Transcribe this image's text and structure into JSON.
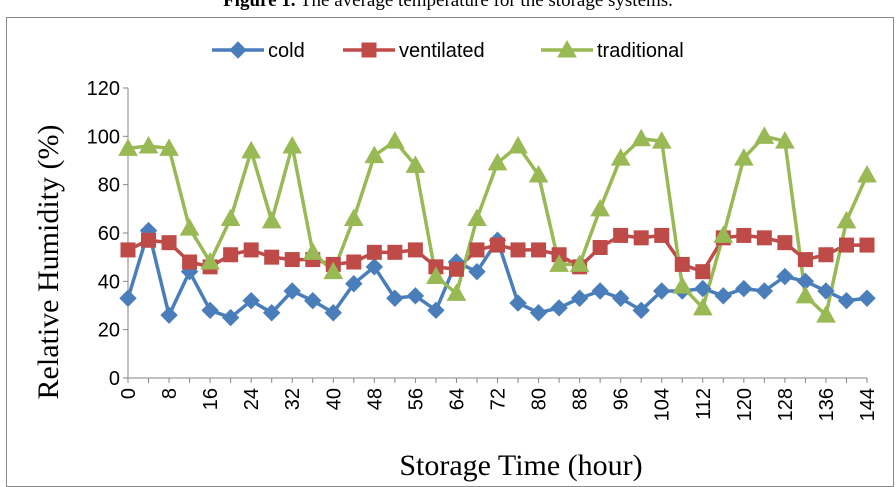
{
  "caption": {
    "label": "Figure 1.",
    "text": " The average temperature for the storage systems."
  },
  "chart_data": {
    "type": "line",
    "xlabel": "Storage Time (hour)",
    "ylabel": "Relative Humidity (%)",
    "ylim": [
      0,
      120
    ],
    "yticks": [
      0,
      20,
      40,
      60,
      80,
      100,
      120
    ],
    "xlim": [
      0,
      144
    ],
    "xticks": [
      0,
      8,
      16,
      24,
      32,
      40,
      48,
      56,
      64,
      72,
      80,
      88,
      96,
      104,
      112,
      120,
      128,
      136,
      144
    ],
    "legend": "top",
    "x": [
      0,
      4,
      8,
      12,
      16,
      20,
      24,
      28,
      32,
      36,
      40,
      44,
      48,
      52,
      56,
      60,
      64,
      68,
      72,
      76,
      80,
      84,
      88,
      92,
      96,
      100,
      104,
      108,
      112,
      116,
      120,
      124,
      128,
      132,
      136,
      140,
      144
    ],
    "series": [
      {
        "name": "cold",
        "color": "#4a7ebb",
        "marker": "diamond",
        "values": [
          33,
          61,
          26,
          44,
          28,
          25,
          32,
          27,
          36,
          32,
          27,
          39,
          46,
          33,
          34,
          28,
          48,
          44,
          57,
          31,
          27,
          29,
          33,
          36,
          33,
          28,
          36,
          36,
          37,
          34,
          37,
          36,
          42,
          40,
          36,
          32,
          33
        ]
      },
      {
        "name": "ventilated",
        "color": "#be4b48",
        "marker": "square",
        "values": [
          53,
          57,
          56,
          48,
          46,
          51,
          53,
          50,
          49,
          49,
          47,
          48,
          52,
          52,
          53,
          46,
          45,
          53,
          55,
          53,
          53,
          51,
          46,
          54,
          59,
          58,
          59,
          47,
          44,
          58,
          59,
          58,
          56,
          49,
          51,
          55,
          55
        ]
      },
      {
        "name": "traditional",
        "color": "#98b954",
        "marker": "triangle",
        "values": [
          95,
          96,
          95,
          62,
          48,
          66,
          94,
          65,
          96,
          52,
          44,
          66,
          92,
          98,
          88,
          42,
          35,
          66,
          89,
          96,
          84,
          47,
          47,
          70,
          91,
          99,
          98,
          38,
          29,
          59,
          91,
          100,
          98,
          34,
          26,
          65,
          84
        ]
      }
    ]
  }
}
